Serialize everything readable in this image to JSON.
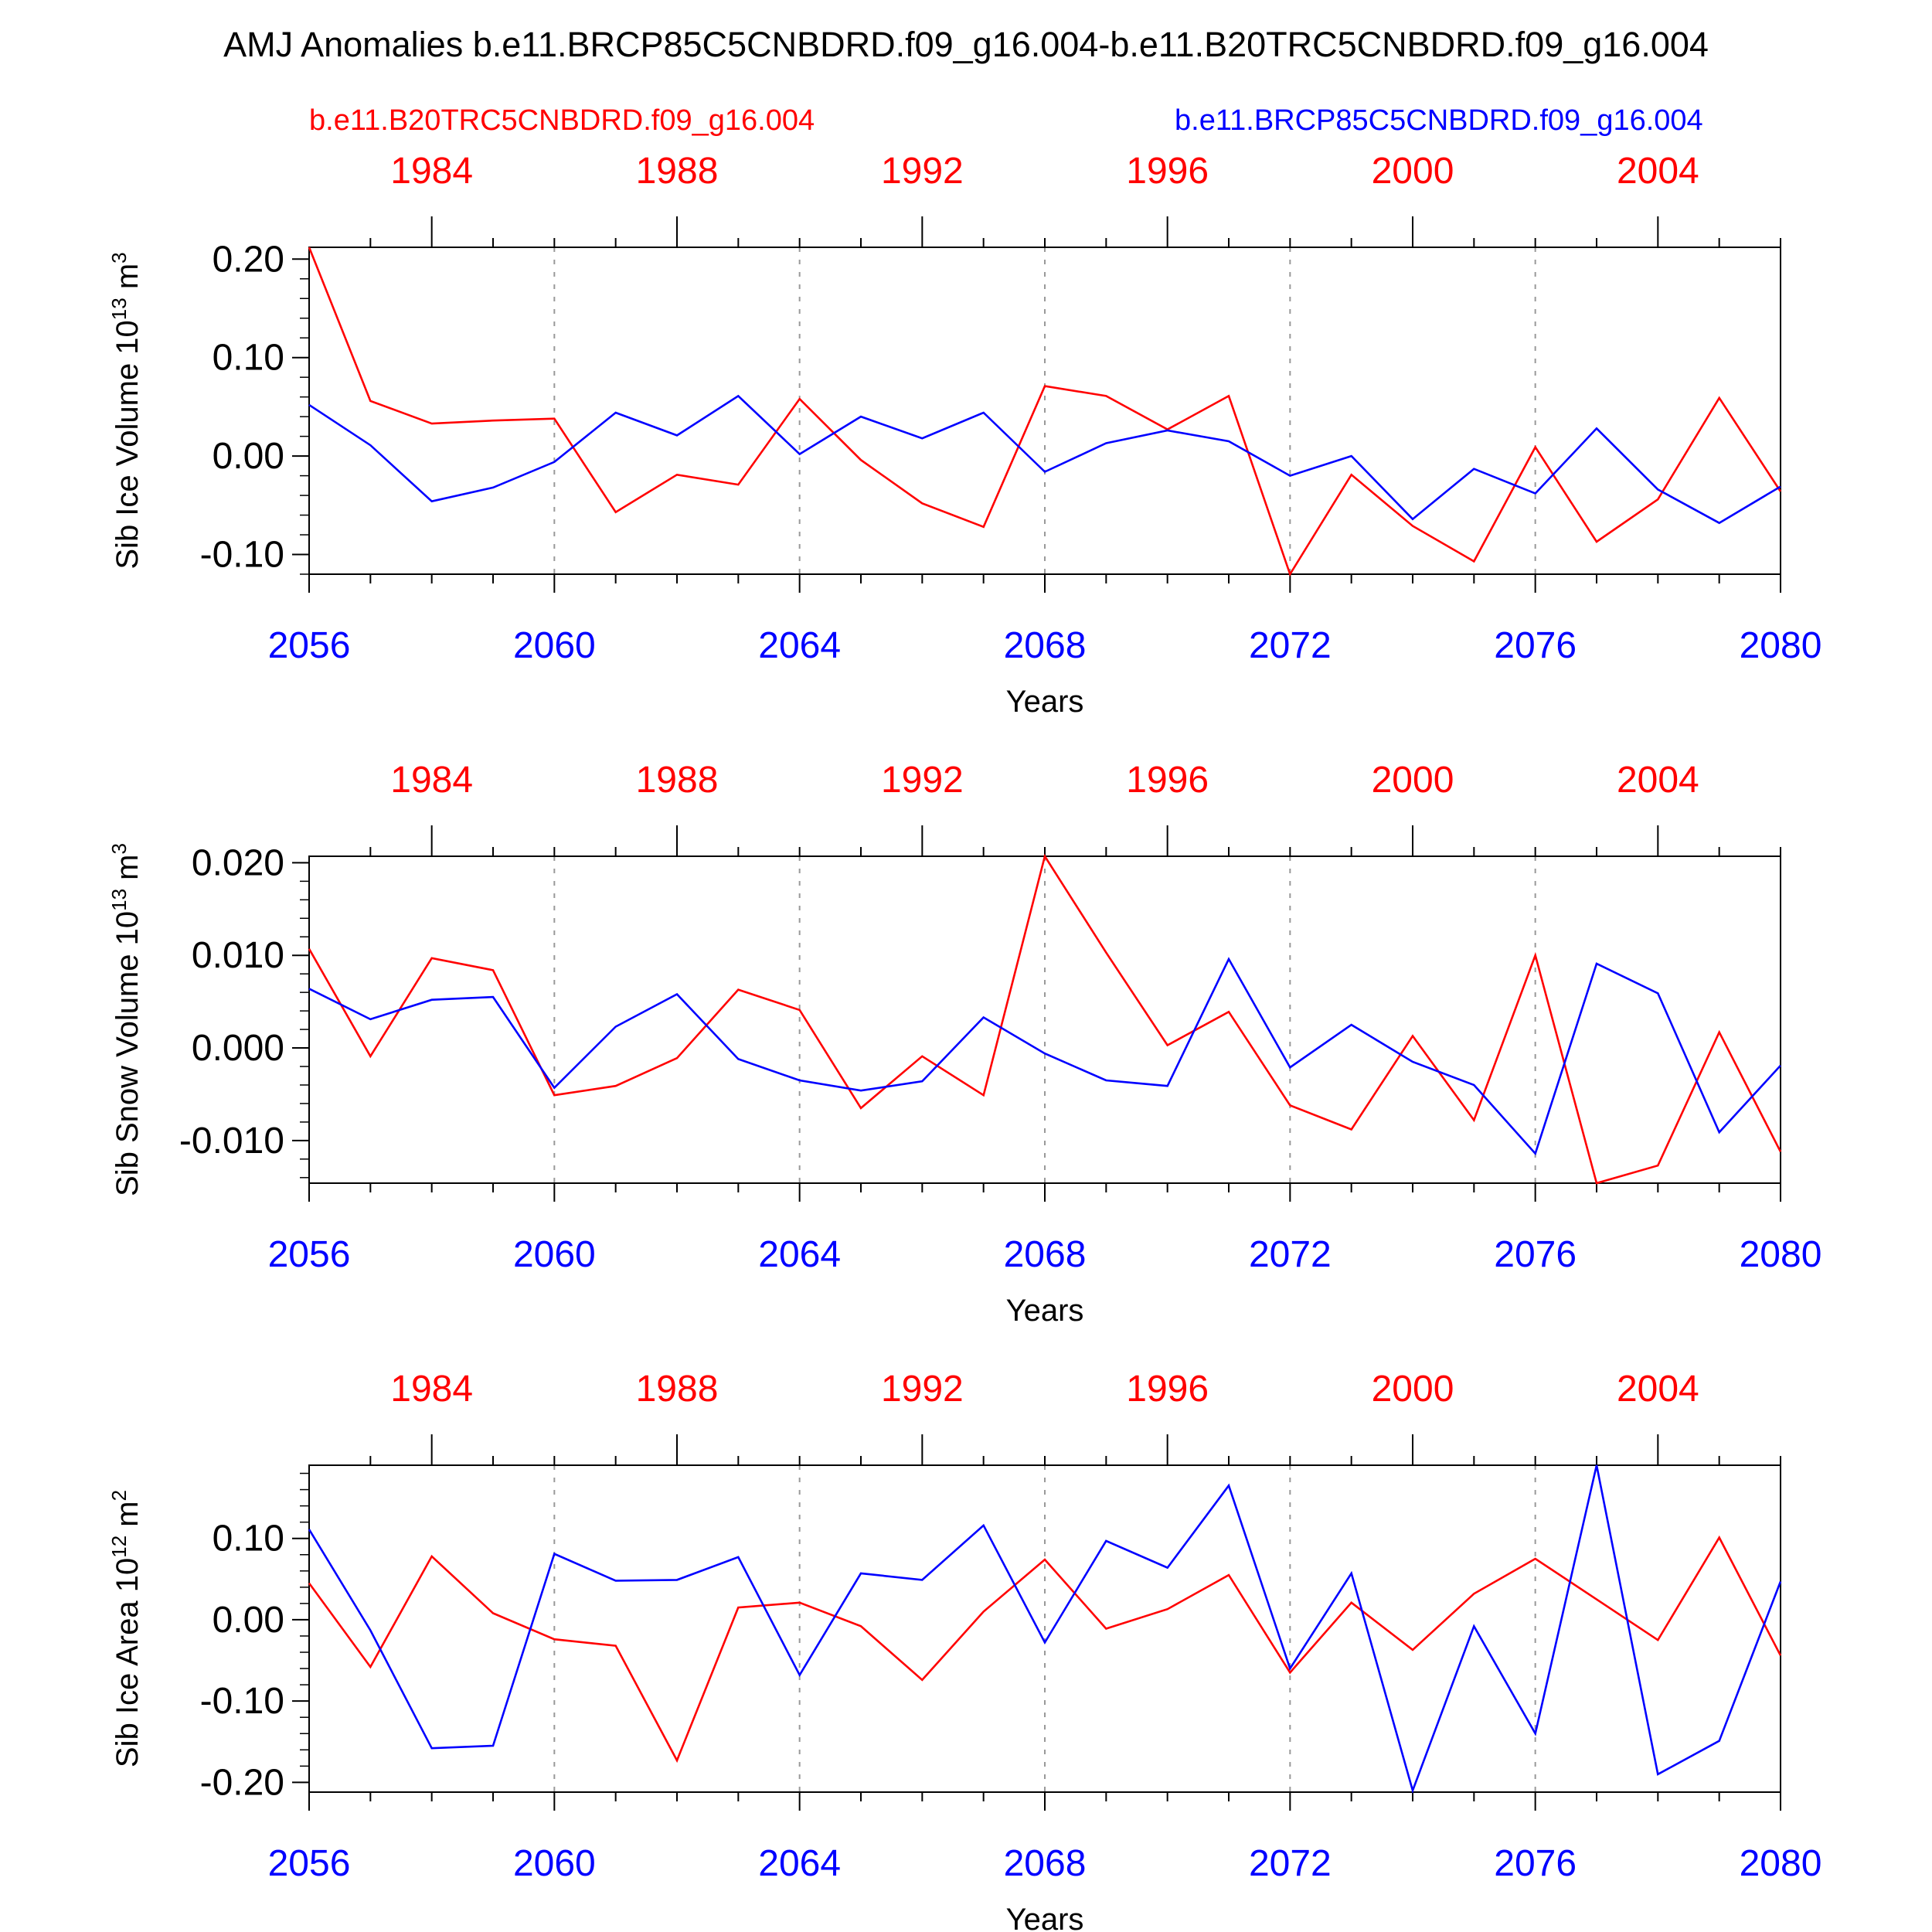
{
  "title": "AMJ Anomalies b.e11.BRCP85C5CNBDRD.f09_g16.004-b.e11.B20TRC5CNBDRD.f09_g16.004",
  "legend": {
    "left": "b.e11.B20TRC5CNBDRD.f09_g16.004",
    "right": "b.e11.BRCP85C5CNBDRD.f09_g16.004"
  },
  "colors": {
    "historical": "#ff0000",
    "future": "#0000ff",
    "axis": "#000000",
    "grid": "#999999"
  },
  "chart_data": [
    {
      "type": "line",
      "ylabel": {
        "main": "Sib Ice Volume 10",
        "exp1": "13",
        "mid": " m",
        "exp2": "3"
      },
      "xlabel": "Years",
      "ylim": [
        -0.12,
        0.212
      ],
      "yticks": [
        0.2,
        0.1,
        0.0,
        -0.1
      ],
      "ytick_labels": [
        "0.20",
        "0.10",
        "0.00",
        "-0.10"
      ],
      "yminor_step": 0.02,
      "x": [
        2056,
        2057,
        2058,
        2059,
        2060,
        2061,
        2062,
        2063,
        2064,
        2065,
        2066,
        2067,
        2068,
        2069,
        2070,
        2071,
        2072,
        2073,
        2074,
        2075,
        2076,
        2077,
        2078,
        2079,
        2080
      ],
      "xlim": [
        2056,
        2080
      ],
      "bottom_ticks": [
        "2056",
        "2060",
        "2064",
        "2068",
        "2072",
        "2076",
        "2080"
      ],
      "top_ticks": [
        "1984",
        "1988",
        "1992",
        "1996",
        "2000",
        "2004"
      ],
      "series": [
        {
          "name": "b.e11.B20TRC5CNBDRD.f09_g16.004",
          "color": "#ff0000",
          "values": [
            0.212,
            0.056,
            0.033,
            0.036,
            0.038,
            -0.057,
            -0.019,
            -0.029,
            0.058,
            -0.004,
            -0.048,
            -0.072,
            0.071,
            0.061,
            0.027,
            0.061,
            -0.12,
            -0.019,
            -0.071,
            -0.107,
            0.009,
            -0.087,
            -0.044,
            0.059,
            -0.036
          ]
        },
        {
          "name": "b.e11.BRCP85C5CNBDRD.f09_g16.004",
          "color": "#0000ff",
          "values": [
            0.052,
            0.011,
            -0.046,
            -0.032,
            -0.006,
            0.044,
            0.021,
            0.061,
            0.002,
            0.04,
            0.018,
            0.044,
            -0.016,
            0.013,
            0.026,
            0.015,
            -0.02,
            0.0,
            -0.064,
            -0.013,
            -0.038,
            0.028,
            -0.034,
            -0.068,
            -0.031
          ]
        }
      ]
    },
    {
      "type": "line",
      "ylabel": {
        "main": "Sib Snow Volume 10",
        "exp1": "13",
        "mid": " m",
        "exp2": "3"
      },
      "xlabel": "Years",
      "ylim": [
        -0.0146,
        0.0207
      ],
      "yticks": [
        0.02,
        0.01,
        0.0,
        -0.01
      ],
      "ytick_labels": [
        "0.020",
        "0.010",
        "0.000",
        "-0.010"
      ],
      "yminor_step": 0.002,
      "x": [
        2056,
        2057,
        2058,
        2059,
        2060,
        2061,
        2062,
        2063,
        2064,
        2065,
        2066,
        2067,
        2068,
        2069,
        2070,
        2071,
        2072,
        2073,
        2074,
        2075,
        2076,
        2077,
        2078,
        2079,
        2080
      ],
      "xlim": [
        2056,
        2080
      ],
      "bottom_ticks": [
        "2056",
        "2060",
        "2064",
        "2068",
        "2072",
        "2076",
        "2080"
      ],
      "top_ticks": [
        "1984",
        "1988",
        "1992",
        "1996",
        "2000",
        "2004"
      ],
      "series": [
        {
          "name": "b.e11.B20TRC5CNBDRD.f09_g16.004",
          "color": "#ff0000",
          "values": [
            0.0107,
            -0.0009,
            0.0097,
            0.0084,
            -0.0051,
            -0.0041,
            -0.0011,
            0.0063,
            0.0041,
            -0.0065,
            -0.0009,
            -0.0051,
            0.0207,
            0.0103,
            0.0003,
            0.0039,
            -0.0062,
            -0.0088,
            0.0013,
            -0.0078,
            0.01,
            -0.0146,
            -0.0127,
            0.0017,
            -0.0112
          ]
        },
        {
          "name": "b.e11.BRCP85C5CNBDRD.f09_g16.004",
          "color": "#0000ff",
          "values": [
            0.0064,
            0.0031,
            0.0052,
            0.0055,
            -0.0043,
            0.0023,
            0.0058,
            -0.0012,
            -0.0035,
            -0.0046,
            -0.0036,
            0.0033,
            -0.0006,
            -0.0035,
            -0.0041,
            0.0096,
            -0.0021,
            0.0025,
            -0.0015,
            -0.004,
            -0.0114,
            0.0091,
            0.0059,
            -0.0091,
            -0.0019
          ]
        }
      ]
    },
    {
      "type": "line",
      "ylabel": {
        "main": "Sib Ice Area 10",
        "exp1": "12",
        "mid": " m",
        "exp2": "2"
      },
      "xlabel": "Years",
      "ylim": [
        -0.212,
        0.19
      ],
      "yticks": [
        0.1,
        0.0,
        -0.1,
        -0.2
      ],
      "ytick_labels": [
        "0.10",
        "0.00",
        "-0.10",
        "-0.20"
      ],
      "yminor_step": 0.02,
      "x": [
        2056,
        2057,
        2058,
        2059,
        2060,
        2061,
        2062,
        2063,
        2064,
        2065,
        2066,
        2067,
        2068,
        2069,
        2070,
        2071,
        2072,
        2073,
        2074,
        2075,
        2076,
        2077,
        2078,
        2079,
        2080
      ],
      "xlim": [
        2056,
        2080
      ],
      "bottom_ticks": [
        "2056",
        "2060",
        "2064",
        "2068",
        "2072",
        "2076",
        "2080"
      ],
      "top_ticks": [
        "1984",
        "1988",
        "1992",
        "1996",
        "2000",
        "2004"
      ],
      "series": [
        {
          "name": "b.e11.B20TRC5CNBDRD.f09_g16.004",
          "color": "#ff0000",
          "values": [
            0.045,
            -0.058,
            0.078,
            0.008,
            -0.024,
            -0.032,
            -0.173,
            0.015,
            0.021,
            -0.008,
            -0.074,
            0.01,
            0.074,
            -0.011,
            0.013,
            0.055,
            -0.065,
            0.021,
            -0.037,
            0.032,
            0.075,
            0.025,
            -0.025,
            0.101,
            -0.044
          ]
        },
        {
          "name": "b.e11.BRCP85C5CNBDRD.f09_g16.004",
          "color": "#0000ff",
          "values": [
            0.111,
            -0.013,
            -0.158,
            -0.155,
            0.081,
            0.048,
            0.049,
            0.077,
            -0.068,
            0.057,
            0.049,
            0.116,
            -0.028,
            0.097,
            0.064,
            0.165,
            -0.06,
            0.057,
            -0.21,
            -0.008,
            -0.14,
            0.19,
            -0.19,
            -0.149,
            0.047
          ]
        }
      ]
    }
  ]
}
